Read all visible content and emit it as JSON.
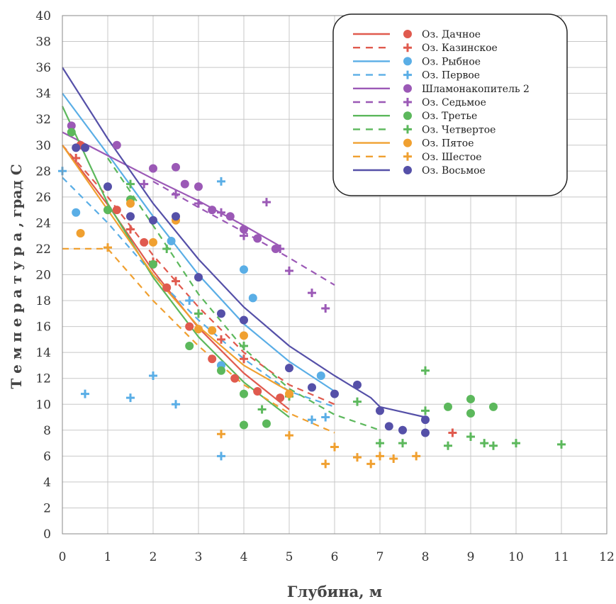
{
  "chart_data": {
    "type": "scatter",
    "xlabel": "Глубина, м",
    "ylabel": "Т е м п е р а т у р а ,  град С",
    "xlim": [
      0,
      12
    ],
    "ylim": [
      0,
      40
    ],
    "xticks": [
      0,
      1,
      2,
      3,
      4,
      5,
      6,
      7,
      8,
      9,
      10,
      11,
      12
    ],
    "yticks": [
      0,
      2,
      4,
      6,
      8,
      10,
      12,
      14,
      16,
      18,
      20,
      22,
      24,
      26,
      28,
      30,
      32,
      34,
      36,
      38,
      40
    ],
    "grid": true,
    "legend_position": "top-right",
    "series": [
      {
        "name": "Оз. Дачное",
        "color": "#e05a4e",
        "marker": "circle",
        "line": "solid",
        "points": [
          [
            0.4,
            30
          ],
          [
            1.2,
            25
          ],
          [
            1.8,
            22.5
          ],
          [
            2.3,
            19
          ],
          [
            2.8,
            16
          ],
          [
            3.3,
            13.5
          ],
          [
            3.8,
            12
          ],
          [
            4.3,
            11
          ],
          [
            4.8,
            10.5
          ]
        ],
        "trend": [
          [
            0,
            30
          ],
          [
            1,
            25.4
          ],
          [
            2,
            20.3
          ],
          [
            3,
            15.9
          ],
          [
            4,
            12.4
          ],
          [
            5,
            9.6
          ]
        ]
      },
      {
        "name": "Оз. Казинское",
        "color": "#e05a4e",
        "marker": "plus",
        "line": "dashed",
        "points": [
          [
            0.3,
            29
          ],
          [
            1,
            25
          ],
          [
            1.5,
            23.5
          ],
          [
            2,
            21
          ],
          [
            2.5,
            19.5
          ],
          [
            3,
            17
          ],
          [
            3.5,
            15
          ],
          [
            4,
            13.5
          ],
          [
            8.6,
            7.8
          ]
        ],
        "trend": [
          [
            0,
            30
          ],
          [
            1,
            26
          ],
          [
            2,
            21.5
          ],
          [
            3,
            17.5
          ],
          [
            4,
            14
          ],
          [
            5,
            11.5
          ],
          [
            6,
            10
          ]
        ]
      },
      {
        "name": "Оз. Рыбное",
        "color": "#5aaee6",
        "marker": "circle",
        "line": "solid",
        "points": [
          [
            0.3,
            24.8
          ],
          [
            2.4,
            22.6
          ],
          [
            3.5,
            13
          ],
          [
            4,
            20.4
          ],
          [
            4.2,
            18.2
          ],
          [
            5.7,
            12.2
          ]
        ],
        "trend": [
          [
            0,
            34
          ],
          [
            1,
            29.3
          ],
          [
            2,
            24.5
          ],
          [
            3,
            20
          ],
          [
            4,
            16.2
          ],
          [
            5,
            13.3
          ],
          [
            6,
            11
          ]
        ]
      },
      {
        "name": "Оз. Первое",
        "color": "#5aaee6",
        "marker": "plus",
        "line": "dashed",
        "points": [
          [
            0,
            28
          ],
          [
            0.5,
            10.8
          ],
          [
            1.5,
            10.5
          ],
          [
            2,
            12.2
          ],
          [
            2.5,
            10
          ],
          [
            3.5,
            27.2
          ],
          [
            3.5,
            6
          ],
          [
            2.8,
            18
          ],
          [
            5.5,
            8.8
          ],
          [
            5.8,
            9
          ]
        ],
        "trend": [
          [
            0,
            27.5
          ],
          [
            1,
            24
          ],
          [
            2,
            20
          ],
          [
            3,
            16.5
          ],
          [
            4,
            13.5
          ],
          [
            5,
            11
          ],
          [
            6,
            9.8
          ]
        ]
      },
      {
        "name": "Шламонакопитель 2",
        "color": "#9b59b6",
        "marker": "circle",
        "line": "solid",
        "points": [
          [
            0.2,
            31.5
          ],
          [
            1.2,
            30
          ],
          [
            2,
            28.2
          ],
          [
            2.5,
            28.3
          ],
          [
            2.7,
            27
          ],
          [
            3,
            26.8
          ],
          [
            3.3,
            25
          ],
          [
            3.7,
            24.5
          ],
          [
            4,
            23.5
          ],
          [
            4.3,
            22.8
          ],
          [
            4.7,
            22
          ]
        ],
        "trend": [
          [
            0,
            31
          ],
          [
            1,
            29.2
          ],
          [
            2,
            27.4
          ],
          [
            3,
            25.7
          ],
          [
            4,
            23.8
          ],
          [
            4.8,
            22.2
          ]
        ]
      },
      {
        "name": "Оз. Седьмое",
        "color": "#9b59b6",
        "marker": "plus",
        "line": "dashed",
        "points": [
          [
            1.8,
            27
          ],
          [
            2.5,
            26.2
          ],
          [
            3,
            25.5
          ],
          [
            3.5,
            24.8
          ],
          [
            4,
            23
          ],
          [
            4.5,
            25.6
          ],
          [
            4.8,
            22
          ],
          [
            5,
            20.3
          ],
          [
            5.5,
            18.6
          ],
          [
            5.8,
            17.4
          ]
        ],
        "trend": [
          [
            2,
            27.2
          ],
          [
            3,
            25.2
          ],
          [
            4,
            23.3
          ],
          [
            5,
            21.3
          ],
          [
            6,
            19.2
          ]
        ]
      },
      {
        "name": "Оз. Третье",
        "color": "#5cb85c",
        "marker": "circle",
        "line": "solid",
        "points": [
          [
            0.2,
            31
          ],
          [
            1,
            25
          ],
          [
            1.5,
            25.8
          ],
          [
            2,
            20.8
          ],
          [
            2.8,
            14.5
          ],
          [
            3.5,
            12.6
          ],
          [
            4,
            10.8
          ],
          [
            4,
            8.4
          ],
          [
            4.5,
            8.5
          ],
          [
            8.5,
            9.8
          ],
          [
            9,
            10.4
          ],
          [
            9,
            9.3
          ],
          [
            9.5,
            9.8
          ]
        ],
        "trend": [
          [
            0,
            33
          ],
          [
            1,
            25.5
          ],
          [
            2,
            19.8
          ],
          [
            3,
            15.2
          ],
          [
            4,
            11.7
          ],
          [
            5,
            9
          ]
        ]
      },
      {
        "name": "Оз. Четвертое",
        "color": "#5cb85c",
        "marker": "plus",
        "line": "dashed",
        "points": [
          [
            1.5,
            27
          ],
          [
            2.3,
            22
          ],
          [
            3,
            17
          ],
          [
            4,
            14.5
          ],
          [
            4.4,
            9.6
          ],
          [
            5,
            10.6
          ],
          [
            6.5,
            10.2
          ],
          [
            7,
            7
          ],
          [
            7.5,
            7
          ],
          [
            8,
            12.6
          ],
          [
            8,
            9.5
          ],
          [
            8.5,
            6.8
          ],
          [
            9,
            7.5
          ],
          [
            9.3,
            7
          ],
          [
            9.5,
            6.8
          ],
          [
            10,
            7
          ],
          [
            11,
            6.9
          ]
        ],
        "trend": [
          [
            1,
            29
          ],
          [
            2,
            23.8
          ],
          [
            3,
            18.5
          ],
          [
            4,
            14.3
          ],
          [
            5,
            11.2
          ],
          [
            6,
            9.2
          ],
          [
            7,
            8
          ]
        ]
      },
      {
        "name": "Оз. Пятое",
        "color": "#f0a030",
        "marker": "circle",
        "line": "solid",
        "points": [
          [
            0.4,
            23.2
          ],
          [
            1.5,
            25.5
          ],
          [
            2,
            22.5
          ],
          [
            2.5,
            24.2
          ],
          [
            3,
            15.8
          ],
          [
            3.3,
            15.7
          ],
          [
            4,
            15.3
          ],
          [
            5,
            10.8
          ]
        ],
        "trend": [
          [
            0,
            30
          ],
          [
            1,
            25
          ],
          [
            2,
            20
          ],
          [
            3,
            16
          ],
          [
            4,
            13
          ],
          [
            5,
            11
          ]
        ]
      },
      {
        "name": "Оз. Шестое",
        "color": "#f0a030",
        "marker": "plus",
        "line": "dashed",
        "points": [
          [
            1,
            22.1
          ],
          [
            3.5,
            7.7
          ],
          [
            5,
            7.6
          ],
          [
            5.8,
            5.4
          ],
          [
            6,
            6.7
          ],
          [
            6.5,
            5.9
          ],
          [
            6.8,
            5.4
          ],
          [
            7,
            6
          ],
          [
            7.3,
            5.8
          ],
          [
            7.8,
            6
          ]
        ],
        "trend": [
          [
            0,
            22
          ],
          [
            1,
            22
          ],
          [
            2,
            18
          ],
          [
            3,
            14.5
          ],
          [
            4,
            11.5
          ],
          [
            5,
            9.3
          ],
          [
            6,
            7.8
          ]
        ]
      },
      {
        "name": "Оз. Восьмое",
        "color": "#5550a8",
        "marker": "circle",
        "line": "solid",
        "points": [
          [
            0.3,
            29.8
          ],
          [
            0.5,
            29.8
          ],
          [
            1,
            26.8
          ],
          [
            1.5,
            24.5
          ],
          [
            2,
            24.2
          ],
          [
            2.5,
            24.5
          ],
          [
            3,
            19.8
          ],
          [
            3.5,
            17
          ],
          [
            4,
            16.5
          ],
          [
            5,
            12.8
          ],
          [
            5.5,
            11.3
          ],
          [
            6,
            10.8
          ],
          [
            6.5,
            11.5
          ],
          [
            7,
            9.5
          ],
          [
            7.2,
            8.3
          ],
          [
            7.5,
            8
          ],
          [
            8,
            7.8
          ],
          [
            8,
            8.8
          ]
        ],
        "trend": [
          [
            0,
            36
          ],
          [
            1,
            30.5
          ],
          [
            2,
            25.5
          ],
          [
            3,
            21.2
          ],
          [
            4,
            17.5
          ],
          [
            5,
            14.5
          ],
          [
            6,
            12.2
          ],
          [
            6.8,
            10.5
          ],
          [
            7,
            9.8
          ],
          [
            8,
            9
          ]
        ]
      }
    ]
  }
}
